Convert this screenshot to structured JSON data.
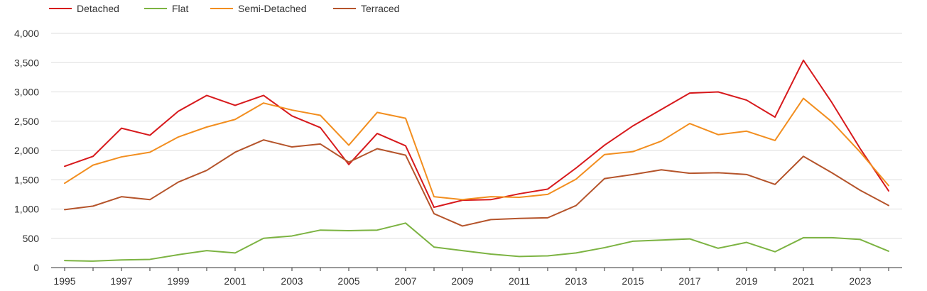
{
  "chart_data": {
    "type": "line",
    "title": "",
    "xlabel": "",
    "ylabel": "",
    "ylim": [
      0,
      4000
    ],
    "yticks": [
      0,
      500,
      1000,
      1500,
      2000,
      2500,
      3000,
      3500,
      4000
    ],
    "ytick_labels": [
      "0",
      "500",
      "1,000",
      "1,500",
      "2,000",
      "2,500",
      "3,000",
      "3,500",
      "4,000"
    ],
    "x": [
      1995,
      1996,
      1997,
      1998,
      1999,
      2000,
      2001,
      2002,
      2003,
      2004,
      2005,
      2006,
      2007,
      2008,
      2009,
      2010,
      2011,
      2012,
      2013,
      2014,
      2015,
      2016,
      2017,
      2018,
      2019,
      2020,
      2021,
      2022,
      2023,
      2024
    ],
    "xticks": [
      1995,
      1997,
      1999,
      2001,
      2003,
      2005,
      2007,
      2009,
      2011,
      2013,
      2015,
      2017,
      2019,
      2021,
      2023
    ],
    "xtick_labels": [
      "1995",
      "1997",
      "1999",
      "2001",
      "2003",
      "2005",
      "2007",
      "2009",
      "2011",
      "2013",
      "2015",
      "2017",
      "2019",
      "2021",
      "2023"
    ],
    "grid": true,
    "legend_position": "top-left",
    "series": [
      {
        "name": "Detached",
        "color": "#d7191c",
        "values": [
          1730,
          1900,
          2380,
          2260,
          2670,
          2940,
          2770,
          2940,
          2590,
          2390,
          1760,
          2290,
          2080,
          1030,
          1150,
          1160,
          1260,
          1340,
          1700,
          2090,
          2420,
          2700,
          2980,
          3000,
          2860,
          2570,
          3540,
          2820,
          2030,
          1310
        ]
      },
      {
        "name": "Flat",
        "color": "#7cb342",
        "values": [
          120,
          110,
          130,
          140,
          220,
          290,
          250,
          500,
          540,
          640,
          630,
          640,
          760,
          350,
          290,
          230,
          190,
          200,
          250,
          340,
          450,
          470,
          490,
          330,
          430,
          270,
          510,
          510,
          480,
          280
        ]
      },
      {
        "name": "Semi-Detached",
        "color": "#f28e1f",
        "values": [
          1440,
          1750,
          1890,
          1970,
          2230,
          2400,
          2530,
          2810,
          2690,
          2600,
          2090,
          2650,
          2550,
          1210,
          1160,
          1210,
          1200,
          1250,
          1510,
          1930,
          1980,
          2160,
          2460,
          2270,
          2330,
          2170,
          2890,
          2490,
          1970,
          1400
        ]
      },
      {
        "name": "Terraced",
        "color": "#b5542b",
        "values": [
          990,
          1050,
          1210,
          1160,
          1460,
          1660,
          1970,
          2180,
          2060,
          2110,
          1800,
          2030,
          1920,
          920,
          710,
          820,
          840,
          850,
          1060,
          1520,
          1590,
          1670,
          1610,
          1620,
          1590,
          1420,
          1900,
          1620,
          1320,
          1060
        ]
      }
    ]
  }
}
